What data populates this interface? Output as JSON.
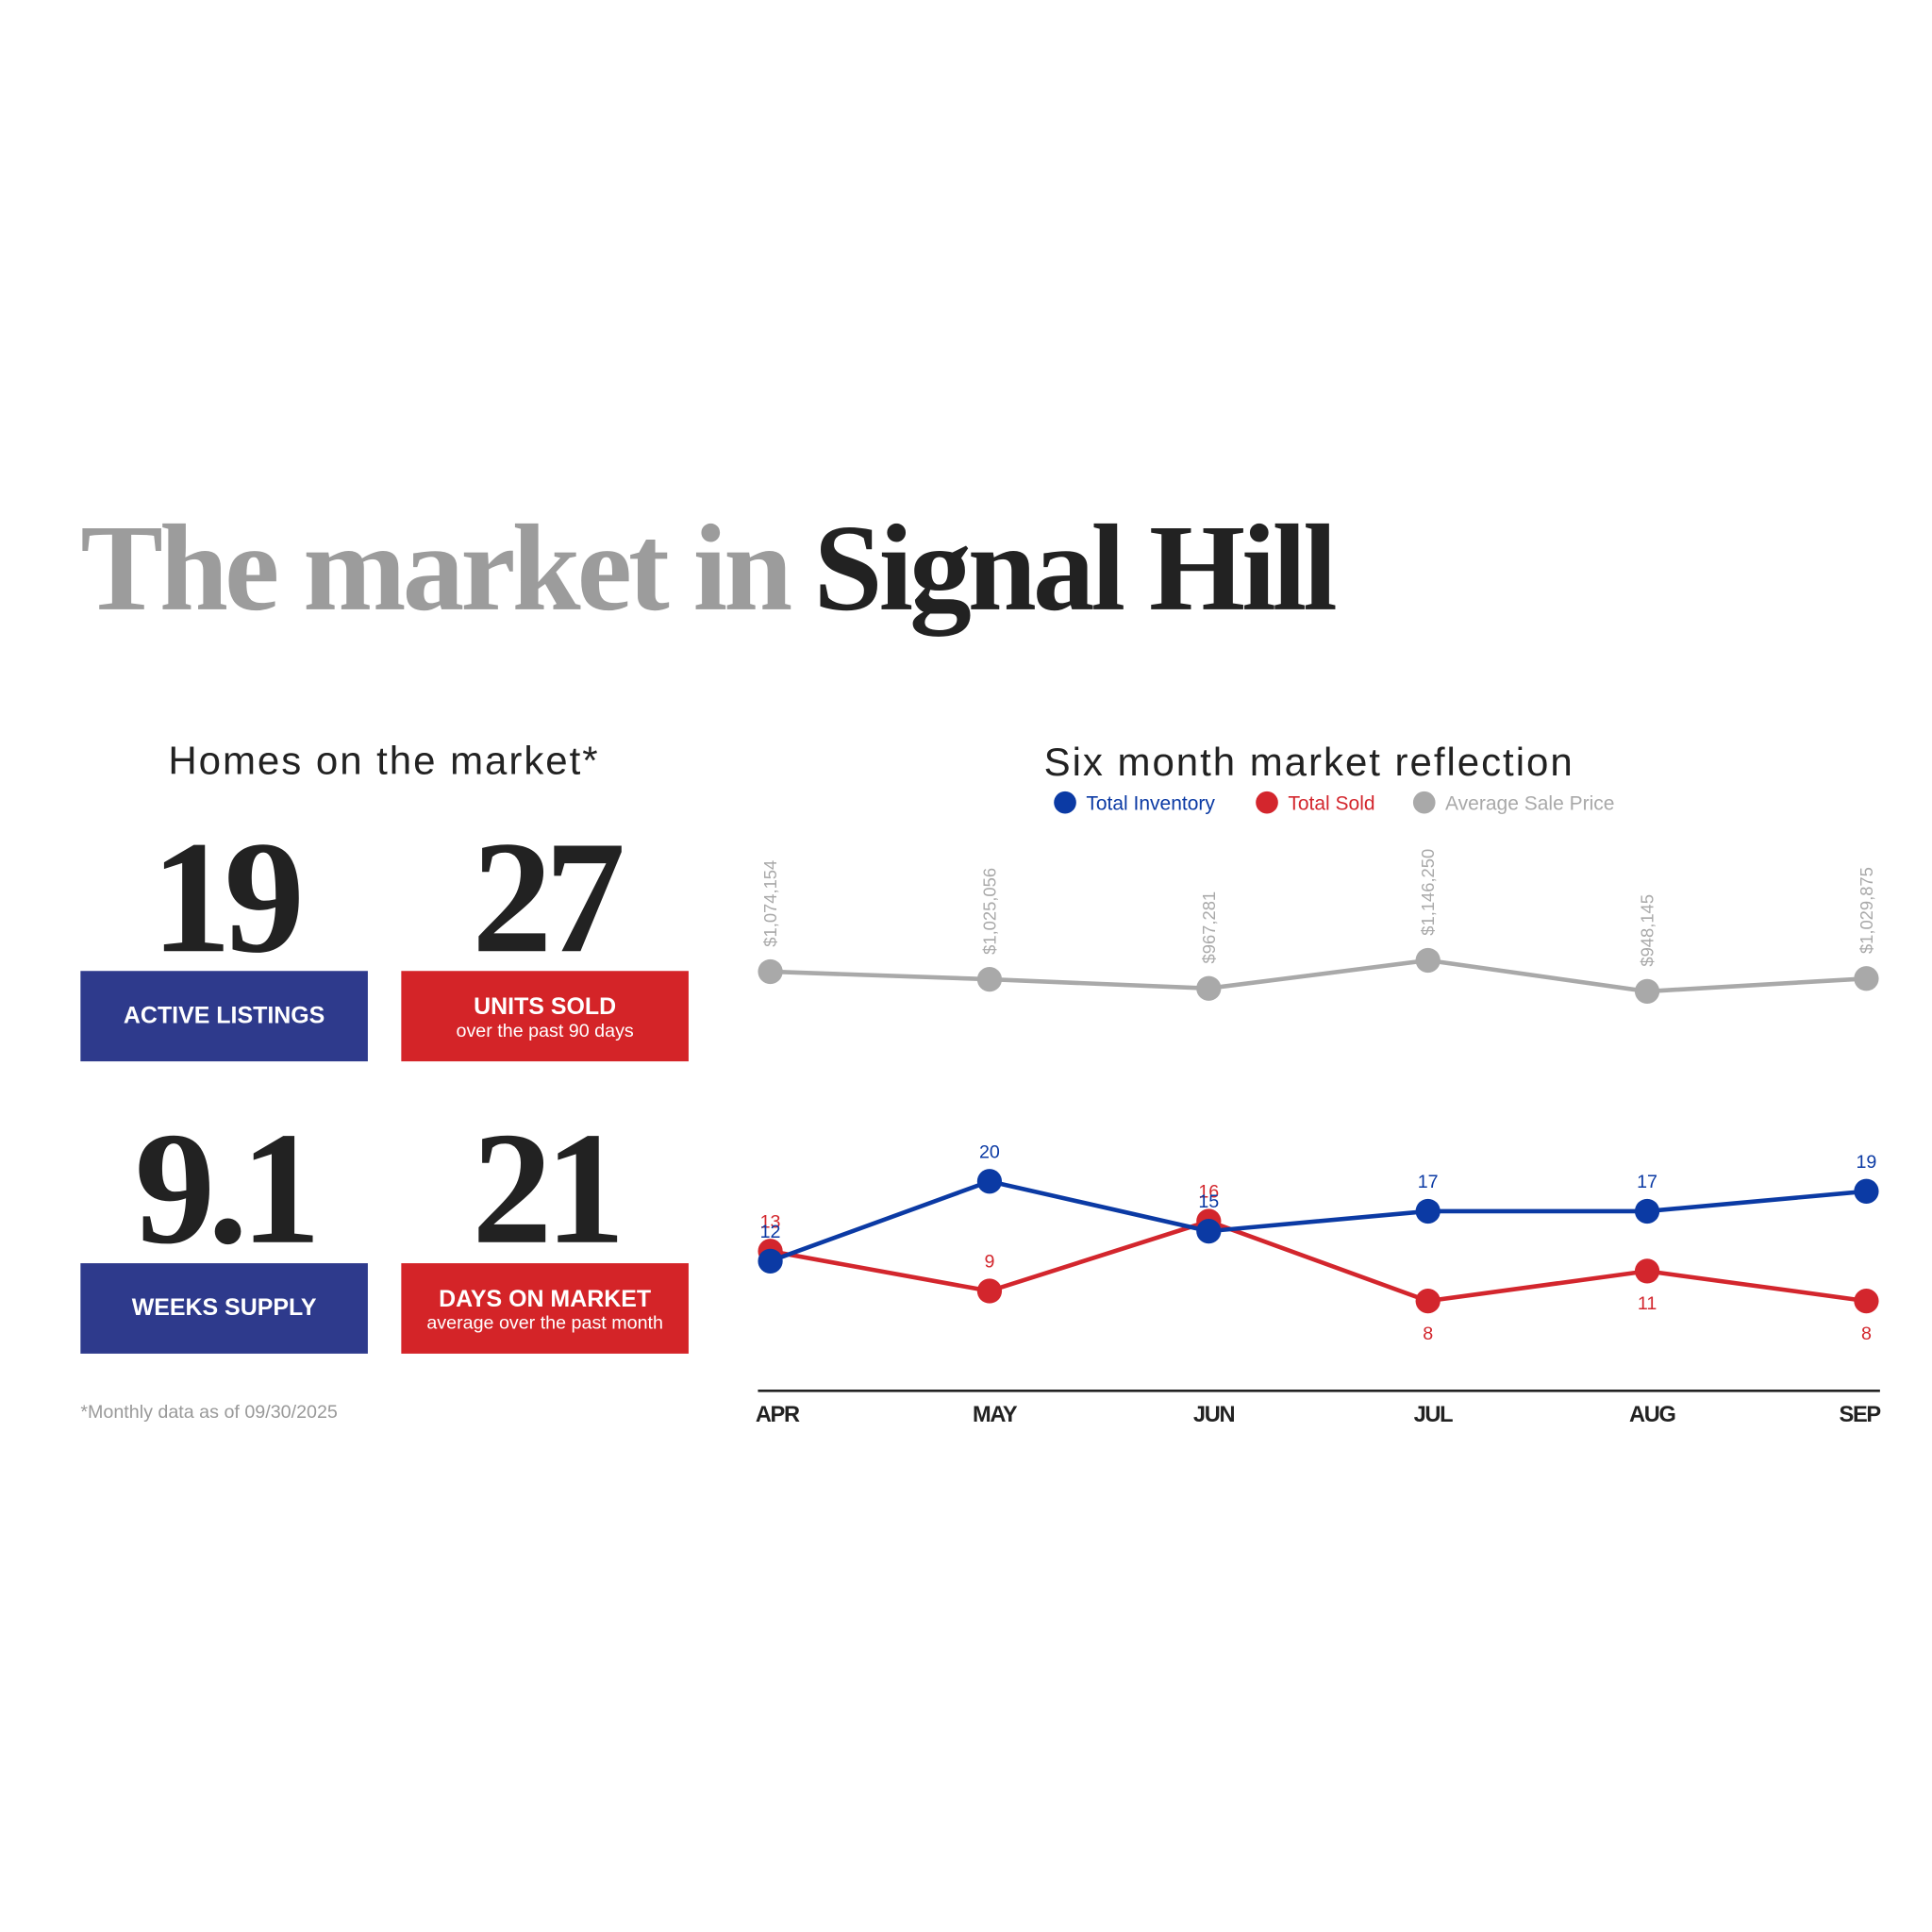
{
  "header": {
    "title_lead": "The market in",
    "title_place": "Signal Hill"
  },
  "homes": {
    "heading": "Homes on the market*",
    "stats": [
      {
        "value": 19,
        "label": "ACTIVE LISTINGS"
      },
      {
        "value": 27,
        "label": "UNITS SOLD",
        "sublabel": "over the past 90 days"
      },
      {
        "value": 9.1,
        "label": "WEEKS SUPPLY"
      },
      {
        "value": 21,
        "label": "DAYS ON MARKET",
        "sublabel": "average over the past month"
      }
    ],
    "footnote": "*Monthly data as of 09/30/2025"
  },
  "chart_data": {
    "type": "line",
    "title": "Six month market reflection",
    "categories": [
      "APR",
      "MAY",
      "JUN",
      "JUL",
      "AUG",
      "SEP"
    ],
    "series": [
      {
        "name": "Total Inventory",
        "color": "#0b3aa4",
        "values": [
          12,
          20,
          15,
          17,
          17,
          19
        ]
      },
      {
        "name": "Total Sold",
        "color": "#d3262d",
        "values": [
          13,
          9,
          16,
          8,
          11,
          8
        ]
      },
      {
        "name": "Average Sale Price",
        "color": "#a9a9a9",
        "axis": "y2",
        "values": [
          1074154,
          1025056,
          967281,
          1146250,
          948145,
          1029875
        ],
        "value_labels": [
          "$1,074,154",
          "$1,025,056",
          "$967,281",
          "$1,146,250",
          "$948,145",
          "$1,029,875"
        ]
      }
    ],
    "ylim": [
      -1,
      54
    ],
    "y2lim": [
      -1600000,
      1900000
    ]
  }
}
